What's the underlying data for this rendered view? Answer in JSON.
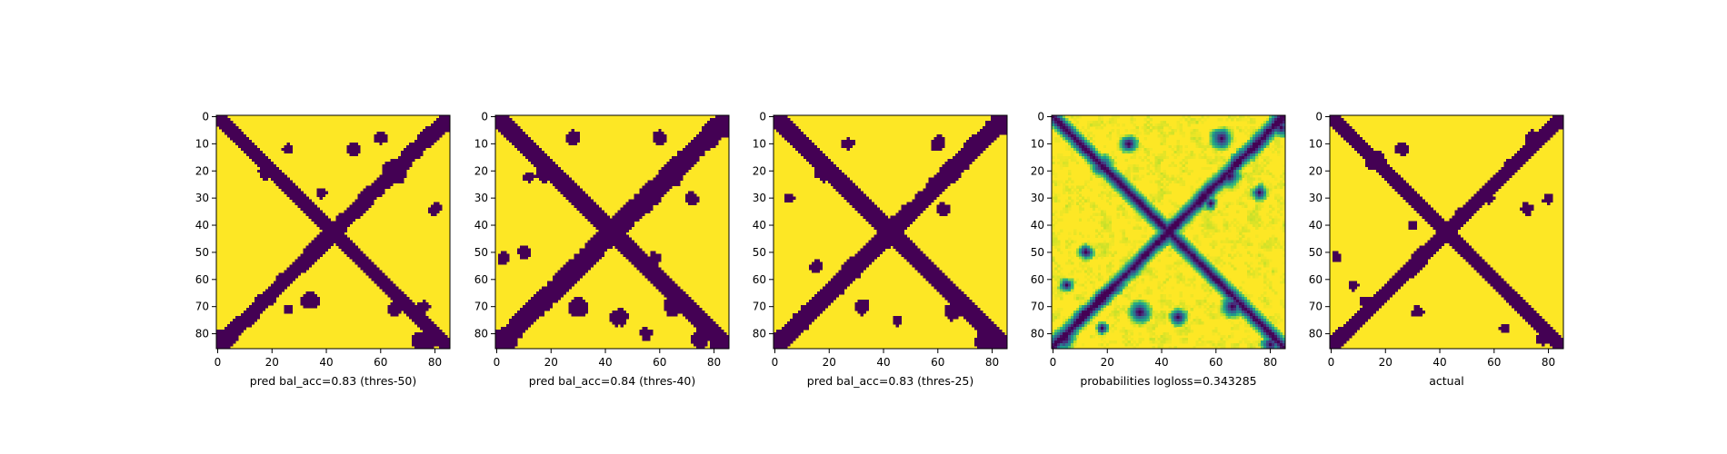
{
  "chart_data": [
    {
      "type": "heatmap",
      "title": "",
      "xlabel": "pred bal_acc=0.83 (thres-50)",
      "ylabel": "",
      "grid": 86,
      "xlim": [
        0,
        85
      ],
      "ylim": [
        85,
        0
      ],
      "xticks": [
        0,
        20,
        40,
        60,
        80
      ],
      "yticks": [
        0,
        10,
        20,
        30,
        40,
        50,
        60,
        70,
        80
      ],
      "colormap": "binary",
      "colors": {
        "high": "#fde725",
        "low": "#440154"
      },
      "diagonal_width": 3.0,
      "blobs": [
        [
          18,
          20,
          3.5
        ],
        [
          26,
          12,
          2
        ],
        [
          65,
          20,
          5
        ],
        [
          60,
          8,
          2.5
        ],
        [
          62,
          25,
          2
        ],
        [
          85,
          2,
          4
        ],
        [
          2,
          82,
          4
        ],
        [
          84,
          84,
          3
        ],
        [
          65,
          71,
          3
        ],
        [
          34,
          68,
          3.5
        ],
        [
          76,
          83,
          4.5
        ],
        [
          50,
          12,
          2.5
        ],
        [
          11,
          11,
          2
        ],
        [
          38,
          28,
          2
        ],
        [
          26,
          71,
          2
        ],
        [
          76,
          70,
          2
        ],
        [
          80,
          34,
          2.5
        ]
      ]
    },
    {
      "type": "heatmap",
      "title": "",
      "xlabel": "pred bal_acc=0.84 (thres-40)",
      "ylabel": "",
      "grid": 86,
      "xlim": [
        0,
        85
      ],
      "ylim": [
        85,
        0
      ],
      "xticks": [
        0,
        20,
        40,
        60,
        80
      ],
      "yticks": [
        0,
        10,
        20,
        30,
        40,
        50,
        60,
        70,
        80
      ],
      "colormap": "binary",
      "colors": {
        "high": "#fde725",
        "low": "#440154"
      },
      "diagonal_width": 3.8,
      "blobs": [
        [
          18,
          20,
          4.5
        ],
        [
          28,
          8,
          3
        ],
        [
          60,
          8,
          3
        ],
        [
          65,
          22,
          4
        ],
        [
          58,
          30,
          3
        ],
        [
          72,
          30,
          2.5
        ],
        [
          84,
          4,
          4
        ],
        [
          3,
          82,
          5
        ],
        [
          82,
          85,
          4
        ],
        [
          65,
          70,
          4
        ],
        [
          30,
          70,
          4
        ],
        [
          45,
          74,
          3.5
        ],
        [
          12,
          22,
          2.5
        ],
        [
          10,
          50,
          2.5
        ],
        [
          2,
          52,
          2.5
        ],
        [
          58,
          52,
          2.5
        ],
        [
          75,
          82,
          3.5
        ],
        [
          38,
          38,
          2.5
        ],
        [
          55,
          80,
          2.5
        ]
      ]
    },
    {
      "type": "heatmap",
      "title": "",
      "xlabel": "pred bal_acc=0.83 (thres-25)",
      "ylabel": "",
      "grid": 86,
      "xlim": [
        0,
        85
      ],
      "ylim": [
        85,
        0
      ],
      "xticks": [
        0,
        20,
        40,
        60,
        80
      ],
      "yticks": [
        0,
        10,
        20,
        30,
        40,
        50,
        60,
        70,
        80
      ],
      "colormap": "binary",
      "colors": {
        "high": "#fde725",
        "low": "#440154"
      },
      "diagonal_width": 3.3,
      "blobs": [
        [
          18,
          20,
          4
        ],
        [
          27,
          10,
          2.5
        ],
        [
          60,
          10,
          3
        ],
        [
          65,
          20,
          4.5
        ],
        [
          84,
          3,
          4
        ],
        [
          2,
          82,
          4
        ],
        [
          65,
          72,
          3.5
        ],
        [
          32,
          70,
          3
        ],
        [
          78,
          83,
          4.5
        ],
        [
          15,
          55,
          2.5
        ],
        [
          45,
          75,
          2
        ],
        [
          5,
          30,
          2
        ],
        [
          62,
          34,
          2.5
        ]
      ]
    },
    {
      "type": "heatmap",
      "title": "",
      "xlabel": "probabilities logloss=0.343285",
      "ylabel": "",
      "grid": 86,
      "xlim": [
        0,
        85
      ],
      "ylim": [
        85,
        0
      ],
      "xticks": [
        0,
        20,
        40,
        60,
        80
      ],
      "yticks": [
        0,
        10,
        20,
        30,
        40,
        50,
        60,
        70,
        80
      ],
      "colormap": "viridis",
      "colors": {
        "high": "#fde725",
        "low": "#440154"
      },
      "diagonal_width": 3.5,
      "blobs": [
        [
          62,
          8,
          5
        ],
        [
          65,
          22,
          5
        ],
        [
          18,
          18,
          5
        ],
        [
          28,
          10,
          4
        ],
        [
          84,
          4,
          4
        ],
        [
          4,
          82,
          5
        ],
        [
          66,
          70,
          5
        ],
        [
          32,
          72,
          5
        ],
        [
          46,
          74,
          4
        ],
        [
          80,
          84,
          4
        ],
        [
          12,
          50,
          3.5
        ],
        [
          5,
          62,
          3
        ],
        [
          18,
          78,
          3
        ],
        [
          76,
          28,
          3.5
        ],
        [
          58,
          32,
          3
        ]
      ]
    },
    {
      "type": "heatmap",
      "title": "",
      "xlabel": "actual",
      "ylabel": "",
      "grid": 86,
      "xlim": [
        0,
        85
      ],
      "ylim": [
        85,
        0
      ],
      "xticks": [
        0,
        20,
        40,
        60,
        80
      ],
      "yticks": [
        0,
        10,
        20,
        30,
        40,
        50,
        60,
        70,
        80
      ],
      "colormap": "binary",
      "colors": {
        "high": "#fde725",
        "low": "#440154"
      },
      "diagonal_width": 2.6,
      "blobs": [
        [
          16,
          16,
          4
        ],
        [
          26,
          12,
          2.5
        ],
        [
          74,
          8,
          3
        ],
        [
          68,
          16,
          2
        ],
        [
          80,
          30,
          2
        ],
        [
          72,
          34,
          2.5
        ],
        [
          84,
          2,
          3
        ],
        [
          3,
          82,
          3
        ],
        [
          84,
          84,
          3
        ],
        [
          32,
          72,
          2.5
        ],
        [
          64,
          78,
          2
        ],
        [
          78,
          82,
          2.5
        ],
        [
          8,
          62,
          2
        ],
        [
          2,
          52,
          2
        ],
        [
          12,
          68,
          2
        ],
        [
          30,
          40,
          2
        ],
        [
          58,
          30,
          2
        ]
      ]
    }
  ]
}
